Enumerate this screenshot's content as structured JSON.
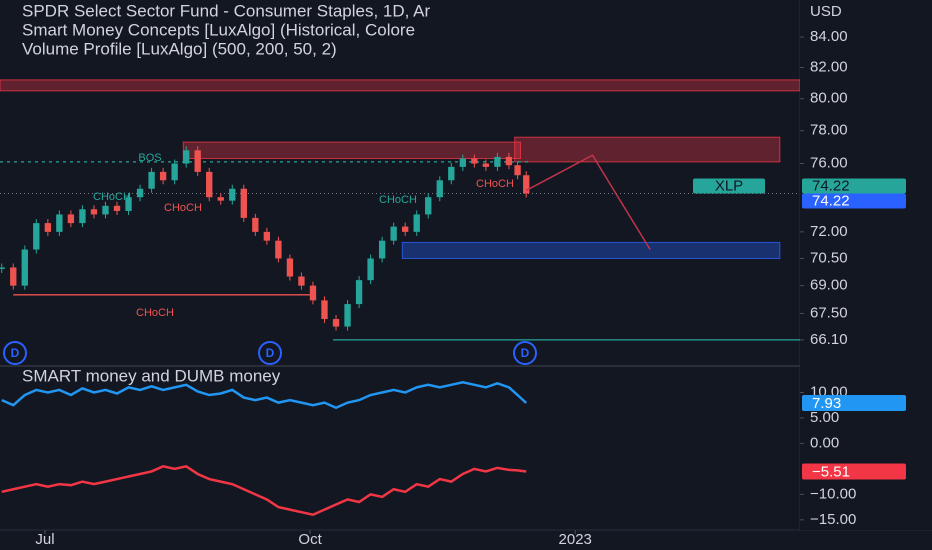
{
  "chart_data": {
    "type": "candlestick",
    "title": "SPDR Select Sector Fund - Consumer Staples, 1D, Ar",
    "indicators": [
      "Smart Money Concepts [LuxAlgo] (Historical, Colore",
      "Volume Profile [LuxAlgo] (500, 200, 50, 2)"
    ],
    "currency": "USD",
    "symbol": "XLP",
    "last_price": 74.22,
    "log": true,
    "x": [
      -15,
      -11,
      -7,
      -3,
      1,
      5,
      9,
      13,
      17,
      21,
      25,
      29,
      33,
      37,
      41,
      45,
      49,
      53,
      57,
      61,
      65,
      69,
      73,
      77,
      81,
      85,
      89,
      93,
      97,
      101,
      105,
      109,
      113,
      117,
      121,
      125,
      129,
      133,
      137,
      141,
      145,
      149,
      153,
      157,
      161,
      164,
      167
    ],
    "values": [
      70.0,
      69.0,
      71.0,
      72.5,
      72.0,
      73.0,
      72.5,
      73.3,
      73.0,
      73.5,
      73.2,
      74.0,
      74.5,
      75.5,
      75.0,
      76.0,
      76.8,
      75.5,
      74.0,
      73.8,
      74.5,
      72.8,
      72.0,
      71.5,
      70.5,
      69.5,
      69.0,
      68.2,
      67.2,
      66.8,
      68.0,
      69.3,
      70.5,
      71.5,
      72.3,
      72.0,
      73.0,
      74.0,
      75.0,
      75.8,
      76.3,
      76.0,
      75.8,
      76.4,
      75.9,
      75.3,
      74.22
    ],
    "up_color": "#26a69a",
    "down_color": "#ef5350",
    "xlim": [
      -15.6,
      262
    ],
    "xticks": [
      {
        "value": 0,
        "label": "Jul"
      },
      {
        "value": 92,
        "label": "Oct"
      },
      {
        "value": 184,
        "label": "2023"
      }
    ],
    "ylim": [
      64.8,
      86.5
    ],
    "yticks": [
      {
        "value": 84,
        "label": "84.00"
      },
      {
        "value": 82,
        "label": "82.00"
      },
      {
        "value": 80,
        "label": "80.00"
      },
      {
        "value": 78,
        "label": "78.00"
      },
      {
        "value": 76,
        "label": "76.00"
      },
      {
        "value": 72,
        "label": "72.00"
      },
      {
        "value": 70.5,
        "label": "70.50"
      },
      {
        "value": 69,
        "label": "69.00"
      },
      {
        "value": 67.5,
        "label": "67.50"
      },
      {
        "value": 66.1,
        "label": "66.10"
      }
    ],
    "zones": [
      {
        "top": 81.2,
        "bottom": 80.5,
        "x1": -15.6,
        "x2": 262,
        "color": "#f23645"
      },
      {
        "top": 77.3,
        "bottom": 76.3,
        "x1": 48,
        "x2": 165,
        "color": "#f23645"
      },
      {
        "top": 77.6,
        "bottom": 76.1,
        "x1": 163,
        "x2": 255,
        "color": "#f23645"
      },
      {
        "top": 71.4,
        "bottom": 70.5,
        "x1": 124,
        "x2": 255,
        "color": "#2962ff"
      }
    ],
    "levels": [
      {
        "value": 76.1,
        "x1": -15.6,
        "x2": 168,
        "color": "#26a69a",
        "dashed": true
      },
      {
        "value": 68.5,
        "x1": -11,
        "x2": 92,
        "color": "#ef5350",
        "dashed": false
      },
      {
        "value": 66.1,
        "x1": 100,
        "x2": 262,
        "color": "#26a69a",
        "dashed": false
      }
    ],
    "projection": {
      "x": [
        167,
        190,
        210
      ],
      "values": [
        74.4,
        76.5,
        71.0
      ],
      "color": "#c2334a"
    },
    "annotations": [
      "BOS",
      "CHoCH",
      "CHoCH",
      "CHoCH",
      "CHoCH",
      "CHoCH"
    ],
    "events": [
      "D",
      "D",
      "D"
    ],
    "lower_pane": {
      "title": "SMART money and DUMB money",
      "ylim": [
        -17,
        15
      ],
      "yticks": [
        {
          "value": 10,
          "label": "10.00"
        },
        {
          "value": 5,
          "label": "5.00"
        },
        {
          "value": 0,
          "label": "0.00"
        },
        {
          "value": -10,
          "label": "−10.00"
        },
        {
          "value": -15,
          "label": "−15.00"
        }
      ],
      "series": [
        {
          "color": "#2196f3",
          "values": [
            8.5,
            7.5,
            9.5,
            10.5,
            10,
            10.5,
            9.5,
            10.8,
            10,
            10.5,
            9.8,
            11,
            10.5,
            11.2,
            10.5,
            11,
            11.5,
            10.2,
            9.5,
            9.8,
            10.5,
            9,
            8.5,
            9,
            8,
            8.5,
            8,
            7.5,
            8,
            7,
            8,
            8.5,
            9.5,
            10,
            10.5,
            10,
            11,
            11.5,
            11,
            11.5,
            12,
            11.5,
            11,
            11.8,
            11,
            9.5,
            7.93
          ],
          "last_label": "7.93"
        },
        {
          "color": "#f23645",
          "values": [
            -9.5,
            -9,
            -8.5,
            -8,
            -8.5,
            -8,
            -8.2,
            -7.5,
            -8,
            -7.5,
            -7,
            -6.5,
            -6,
            -5.5,
            -4.5,
            -5,
            -4.5,
            -6,
            -7,
            -7.5,
            -8,
            -9,
            -10,
            -11,
            -12.5,
            -13,
            -13.5,
            -14,
            -13,
            -12,
            -11,
            -11.5,
            -10,
            -10.5,
            -9,
            -9.5,
            -8,
            -8.5,
            -7,
            -7.5,
            -6,
            -5,
            -5.5,
            -4.8,
            -5.2,
            -5.3,
            -5.51
          ],
          "last_label": "−5.51"
        }
      ]
    }
  }
}
